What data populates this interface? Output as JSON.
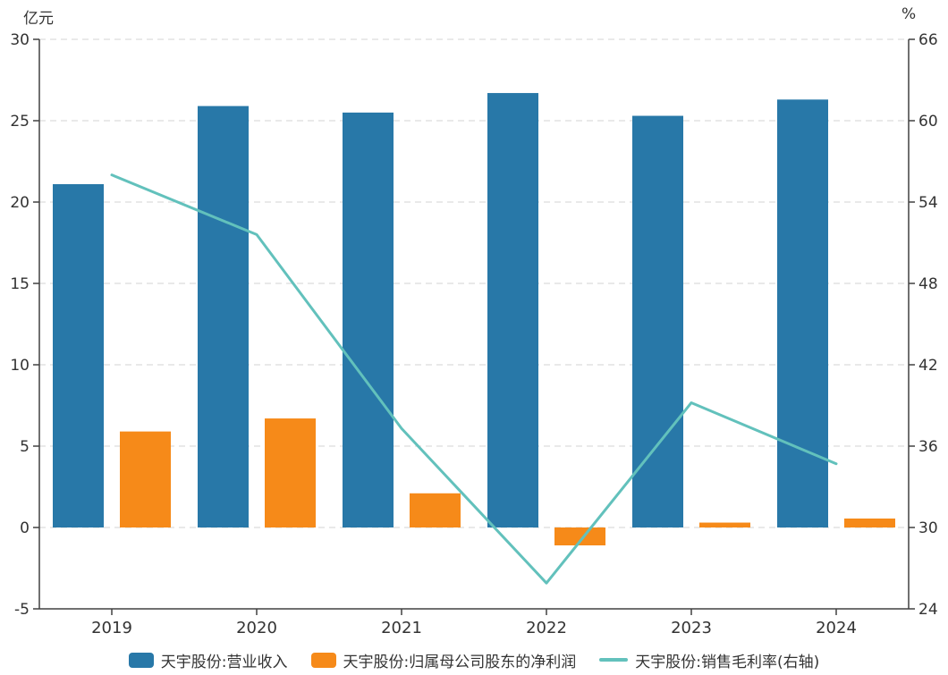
{
  "chart_data": {
    "type": "combo",
    "title": "",
    "categories": [
      "2019",
      "2020",
      "2021",
      "2022",
      "2023",
      "2024"
    ],
    "series": [
      {
        "name": "天宇股份:营业收入",
        "type": "bar",
        "axis": "left",
        "color": "#2878A8",
        "values": [
          21.1,
          25.9,
          25.5,
          26.7,
          25.3,
          26.3
        ]
      },
      {
        "name": "天宇股份:归属母公司股东的净利润",
        "type": "bar",
        "axis": "left",
        "color": "#F68A19",
        "values": [
          5.9,
          6.7,
          2.1,
          -1.1,
          0.3,
          0.55
        ]
      },
      {
        "name": "天宇股份:销售毛利率(右轴)",
        "type": "line",
        "axis": "right",
        "color": "#62C1BC",
        "values": [
          56.0,
          51.6,
          37.3,
          25.9,
          39.2,
          34.7
        ]
      }
    ],
    "left_axis": {
      "label": "亿元",
      "min": -5,
      "max": 30,
      "ticks": [
        30,
        25,
        20,
        15,
        10,
        5,
        0,
        -5
      ]
    },
    "right_axis": {
      "label": "%",
      "min": 24,
      "max": 66,
      "ticks": [
        66,
        60,
        54,
        48,
        42,
        36,
        30,
        24
      ]
    },
    "grid": "horizontal dashed",
    "legend_position": "bottom"
  }
}
